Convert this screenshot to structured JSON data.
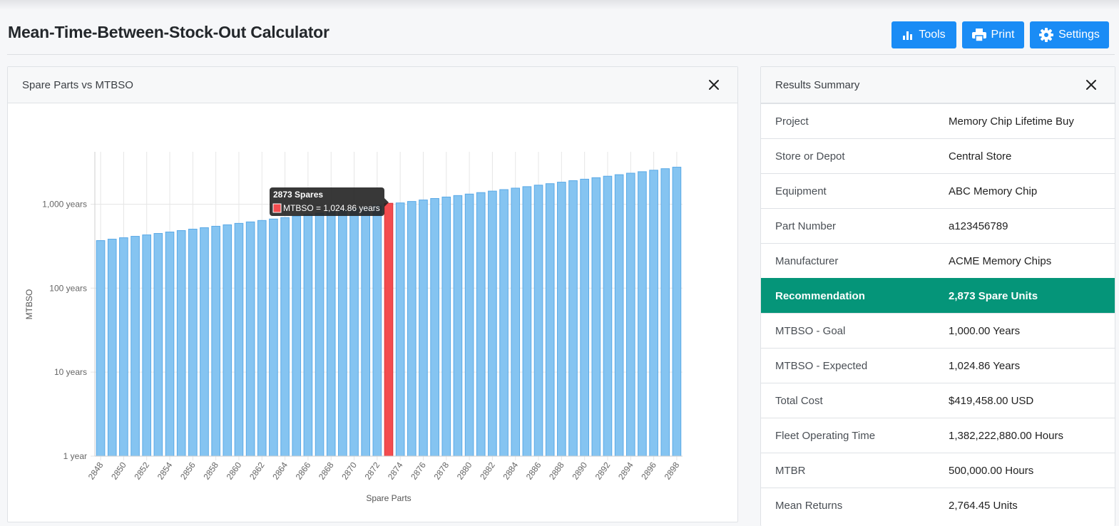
{
  "header": {
    "title": "Mean-Time-Between-Stock-Out Calculator",
    "buttons": {
      "tools": "Tools",
      "print": "Print",
      "settings": "Settings"
    },
    "accent_color": "#1a8cf5"
  },
  "chart_panel": {
    "title": "Spare Parts vs MTBSO"
  },
  "chart_data": {
    "type": "bar",
    "x": [
      2848,
      2849,
      2850,
      2851,
      2852,
      2853,
      2854,
      2855,
      2856,
      2857,
      2858,
      2859,
      2860,
      2861,
      2862,
      2863,
      2864,
      2865,
      2866,
      2867,
      2868,
      2869,
      2870,
      2871,
      2872,
      2873,
      2874,
      2875,
      2876,
      2877,
      2878,
      2879,
      2880,
      2881,
      2882,
      2883,
      2884,
      2885,
      2886,
      2887,
      2888,
      2889,
      2890,
      2891,
      2892,
      2893,
      2894,
      2895,
      2896,
      2897,
      2898
    ],
    "x_tick_labels": [
      "2848",
      "2850",
      "2852",
      "2854",
      "2856",
      "2858",
      "2860",
      "2862",
      "2864",
      "2866",
      "2868",
      "2870",
      "2872",
      "2874",
      "2876",
      "2878",
      "2880",
      "2882",
      "2884",
      "2886",
      "2888",
      "2890",
      "2892",
      "2894",
      "2896",
      "2898"
    ],
    "values": [
      368.5,
      383.2,
      398.3,
      414.2,
      430.7,
      448.1,
      466.1,
      484.9,
      504.4,
      524.7,
      545.9,
      567.9,
      590.9,
      614.8,
      639.7,
      665.7,
      692.8,
      721.0,
      750.4,
      781.0,
      812.9,
      846.2,
      880.9,
      917.0,
      954.7,
      1024.86,
      1034.6,
      1077.2,
      1121.7,
      1168.0,
      1216.3,
      1266.6,
      1319.0,
      1373.7,
      1430.7,
      1490.1,
      1552.1,
      1616.6,
      1684.0,
      1754.1,
      1827.3,
      1903.7,
      1983.3,
      2066.2,
      2152.8,
      2243.0,
      2337.2,
      2435.3,
      2537.7,
      2644.4,
      2755.8
    ],
    "highlight_x": 2873,
    "xlabel": "Spare Parts",
    "ylabel": "MTBSO",
    "y_scale": "log",
    "ylim": [
      1,
      4200
    ],
    "y_ticks": [
      1,
      10,
      100,
      1000
    ],
    "y_tick_labels": [
      "1 year",
      "10 years",
      "100 years",
      "1,000 years"
    ],
    "grid": true,
    "bar_color": "#85c4f1",
    "bar_border_color": "#5aa9e6",
    "highlight_color": "#f34c4f",
    "tooltip": {
      "title": "2873 Spares",
      "label": "MTBSO = 1,024.86 years"
    }
  },
  "summary": {
    "title": "Results Summary",
    "highlight_color": "#059579",
    "rows": [
      {
        "label": "Project",
        "value": "Memory Chip Lifetime Buy"
      },
      {
        "label": "Store or Depot",
        "value": "Central Store"
      },
      {
        "label": "Equipment",
        "value": "ABC Memory Chip"
      },
      {
        "label": "Part Number",
        "value": "a123456789"
      },
      {
        "label": "Manufacturer",
        "value": "ACME Memory Chips"
      },
      {
        "label": "Recommendation",
        "value": "2,873 Spare Units"
      },
      {
        "label": "MTBSO - Goal",
        "value": "1,000.00 Years"
      },
      {
        "label": "MTBSO - Expected",
        "value": "1,024.86 Years"
      },
      {
        "label": "Total Cost",
        "value": "$419,458.00 USD"
      },
      {
        "label": "Fleet Operating Time",
        "value": "1,382,222,880.00 Hours"
      },
      {
        "label": "MTBR",
        "value": "500,000.00 Hours"
      },
      {
        "label": "Mean Returns",
        "value": "2,764.45 Units"
      }
    ]
  }
}
